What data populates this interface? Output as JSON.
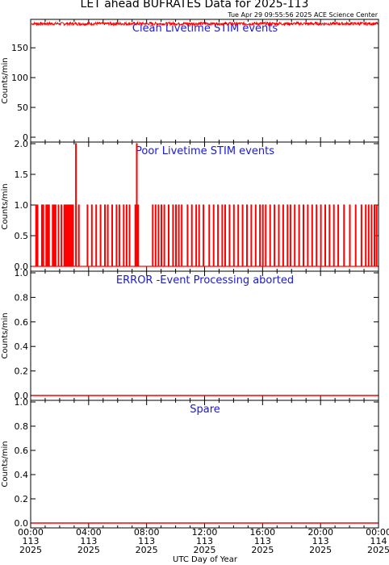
{
  "chart_data": {
    "type": "line",
    "title": "LET ahead BUFRATES Data for 2025-113",
    "timestamp": "Tue Apr 29 09:55:56 2025 ACE Science Center",
    "xlabel": "UTC Day of Year",
    "xlim": [
      0,
      24
    ],
    "x_ticks": [
      {
        "h": 0,
        "time": "00:00",
        "doy": "113",
        "year": "2025"
      },
      {
        "h": 4,
        "time": "04:00",
        "doy": "113",
        "year": "2025"
      },
      {
        "h": 8,
        "time": "08:00",
        "doy": "113",
        "year": "2025"
      },
      {
        "h": 12,
        "time": "12:00",
        "doy": "113",
        "year": "2025"
      },
      {
        "h": 16,
        "time": "16:00",
        "doy": "113",
        "year": "2025"
      },
      {
        "h": 20,
        "time": "20:00",
        "doy": "113",
        "year": "2025"
      },
      {
        "h": 24,
        "time": "00:00",
        "doy": "114",
        "year": "2025"
      }
    ],
    "line_color": "#ff0000",
    "title_color": "#1a1acc",
    "panels": [
      {
        "title": "Clean Livetime STIM events",
        "ylabel": "Counts/min",
        "ylim": [
          0,
          195
        ],
        "yticks": [
          0,
          50,
          100,
          150
        ],
        "series": {
          "kind": "band",
          "low": 188,
          "high": 193
        }
      },
      {
        "title": "Poor Livetime STIM events",
        "ylabel": "Counts/min",
        "ylim": [
          0,
          2
        ],
        "yticks": [
          0.0,
          0.5,
          1.0,
          1.5,
          2.0
        ],
        "series": {
          "kind": "spikes",
          "base": 0,
          "spikes": [
            [
              0.35,
              1
            ],
            [
              0.45,
              1
            ],
            [
              0.75,
              1
            ],
            [
              0.85,
              1
            ],
            [
              1.05,
              1
            ],
            [
              1.15,
              1
            ],
            [
              1.25,
              1
            ],
            [
              1.5,
              1
            ],
            [
              1.6,
              1
            ],
            [
              1.7,
              1
            ],
            [
              1.9,
              1
            ],
            [
              2.1,
              1
            ],
            [
              2.3,
              1
            ],
            [
              2.4,
              1
            ],
            [
              2.5,
              1
            ],
            [
              2.6,
              1
            ],
            [
              2.7,
              1
            ],
            [
              2.8,
              1
            ],
            [
              2.9,
              1
            ],
            [
              3.1,
              2
            ],
            [
              3.3,
              1
            ],
            [
              3.9,
              1
            ],
            [
              4.2,
              1
            ],
            [
              4.5,
              1
            ],
            [
              4.8,
              1
            ],
            [
              5.1,
              1
            ],
            [
              5.3,
              1
            ],
            [
              5.6,
              1
            ],
            [
              5.9,
              1
            ],
            [
              6.1,
              1
            ],
            [
              6.4,
              1
            ],
            [
              6.6,
              1
            ],
            [
              6.8,
              1
            ],
            [
              7.2,
              1
            ],
            [
              7.3,
              2
            ],
            [
              7.4,
              1
            ],
            [
              8.4,
              1
            ],
            [
              8.6,
              1
            ],
            [
              8.8,
              1
            ],
            [
              9.0,
              1
            ],
            [
              9.2,
              1
            ],
            [
              9.5,
              1
            ],
            [
              9.8,
              1
            ],
            [
              10.0,
              1
            ],
            [
              10.2,
              1
            ],
            [
              10.4,
              1
            ],
            [
              10.8,
              1
            ],
            [
              11.1,
              1
            ],
            [
              11.4,
              1
            ],
            [
              11.6,
              1
            ],
            [
              11.9,
              1
            ],
            [
              12.3,
              1
            ],
            [
              12.6,
              1
            ],
            [
              12.9,
              1
            ],
            [
              13.2,
              1
            ],
            [
              13.4,
              1
            ],
            [
              13.7,
              1
            ],
            [
              14.0,
              1
            ],
            [
              14.3,
              1
            ],
            [
              14.6,
              1
            ],
            [
              14.9,
              1
            ],
            [
              15.2,
              1
            ],
            [
              15.5,
              1
            ],
            [
              15.8,
              1
            ],
            [
              16.0,
              1
            ],
            [
              16.2,
              1
            ],
            [
              16.5,
              1
            ],
            [
              16.8,
              1
            ],
            [
              17.1,
              1
            ],
            [
              17.4,
              1
            ],
            [
              17.7,
              1
            ],
            [
              17.9,
              1
            ],
            [
              18.2,
              1
            ],
            [
              18.5,
              1
            ],
            [
              18.8,
              1
            ],
            [
              19.1,
              1
            ],
            [
              19.4,
              1
            ],
            [
              19.7,
              1
            ],
            [
              20.0,
              1
            ],
            [
              20.3,
              1
            ],
            [
              20.6,
              1
            ],
            [
              20.9,
              1
            ],
            [
              21.2,
              1
            ],
            [
              21.6,
              1
            ],
            [
              22.0,
              1
            ],
            [
              22.4,
              1
            ],
            [
              22.8,
              1
            ],
            [
              23.1,
              1
            ],
            [
              23.3,
              1
            ],
            [
              23.5,
              1
            ],
            [
              23.7,
              1
            ],
            [
              23.85,
              1
            ]
          ]
        }
      },
      {
        "title": "ERROR -Event Processing aborted",
        "ylabel": "Counts/min",
        "ylim": [
          0,
          1
        ],
        "yticks": [
          0.0,
          0.2,
          0.4,
          0.6,
          0.8,
          1.0
        ],
        "series": {
          "kind": "flat",
          "value": 0
        }
      },
      {
        "title": "Spare",
        "ylabel": "Counts/min",
        "ylim": [
          0,
          1
        ],
        "yticks": [
          0.0,
          0.2,
          0.4,
          0.6,
          0.8,
          1.0
        ],
        "series": {
          "kind": "flat",
          "value": 0
        }
      }
    ]
  }
}
